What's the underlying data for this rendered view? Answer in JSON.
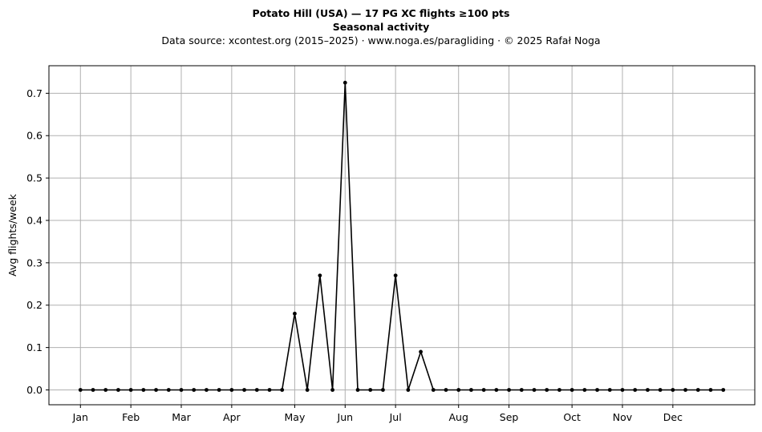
{
  "chart_data": {
    "type": "line",
    "title": "Potato Hill (USA)  —  17 PG XC flights ≥100 pts",
    "subtitle": "Seasonal activity",
    "source_line": "Data source: xcontest.org (2015–2025)  ·  www.noga.es/paragliding  ·  © 2025 Rafał Noga",
    "xlabel": "",
    "ylabel": "Avg flights/week",
    "ylim": [
      -0.035,
      0.765
    ],
    "yticks": [
      0.0,
      0.1,
      0.2,
      0.3,
      0.4,
      0.5,
      0.6,
      0.7
    ],
    "ytick_labels": [
      "0.0",
      "0.1",
      "0.2",
      "0.3",
      "0.4",
      "0.5",
      "0.6",
      "0.7"
    ],
    "xlim": [
      -2.5,
      53.5
    ],
    "xticks": [
      0,
      4,
      8,
      12,
      17,
      21,
      25,
      30,
      34,
      39,
      43,
      47
    ],
    "xtick_labels": [
      "Jan",
      "Feb",
      "Mar",
      "Apr",
      "May",
      "Jun",
      "Jul",
      "Aug",
      "Sep",
      "Oct",
      "Nov",
      "Dec"
    ],
    "grid": true,
    "line_color": "#000000",
    "grid_color": "#b0b0b0",
    "weeks": [
      0,
      1,
      2,
      3,
      4,
      5,
      6,
      7,
      8,
      9,
      10,
      11,
      12,
      13,
      14,
      15,
      16,
      17,
      18,
      19,
      20,
      21,
      22,
      23,
      24,
      25,
      26,
      27,
      28,
      29,
      30,
      31,
      32,
      33,
      34,
      35,
      36,
      37,
      38,
      39,
      40,
      41,
      42,
      43,
      44,
      45,
      46,
      47,
      48,
      49,
      50,
      51
    ],
    "values": [
      0,
      0,
      0,
      0,
      0,
      0,
      0,
      0,
      0,
      0,
      0,
      0,
      0,
      0,
      0,
      0,
      0,
      0.18,
      0,
      0.27,
      0,
      0.725,
      0,
      0,
      0,
      0.27,
      0,
      0.09,
      0,
      0,
      0,
      0,
      0,
      0,
      0,
      0,
      0,
      0,
      0,
      0,
      0,
      0,
      0,
      0,
      0,
      0,
      0,
      0,
      0,
      0,
      0,
      0
    ]
  }
}
